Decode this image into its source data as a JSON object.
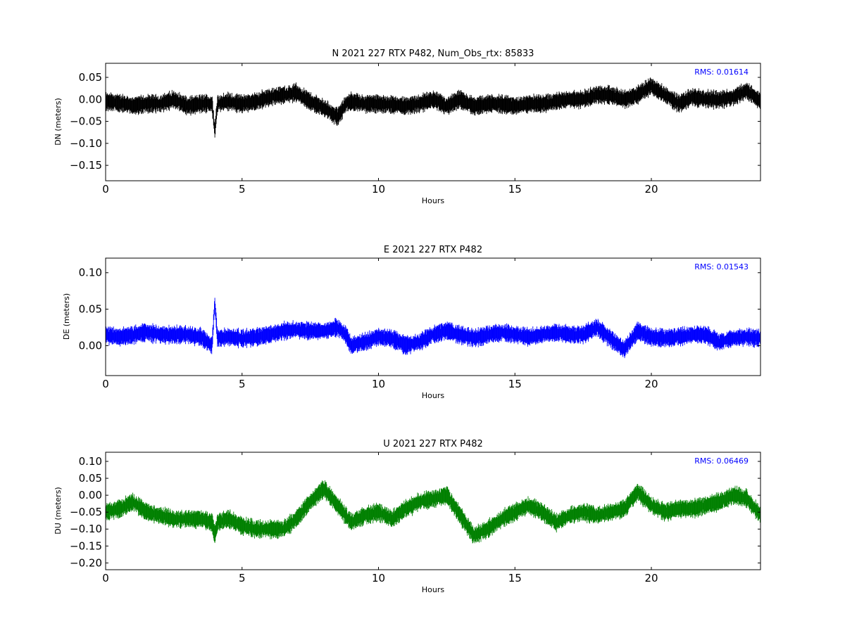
{
  "chart_data": [
    {
      "type": "scatter",
      "title": "N 2021 227 RTX  P482, Num_Obs_rtx: 85833",
      "xlabel": "Hours",
      "ylabel": "DN (meters)",
      "xlim": [
        0,
        24
      ],
      "ylim": [
        -0.185,
        0.082
      ],
      "xticks": [
        "0",
        "5",
        "10",
        "15",
        "20"
      ],
      "xtick_values": [
        0,
        5,
        10,
        15,
        20
      ],
      "yticks": [
        "0.05",
        "0.00",
        "−0.05",
        "−0.10",
        "−0.15"
      ],
      "ytick_values": [
        0.05,
        0.0,
        -0.05,
        -0.1,
        -0.15
      ],
      "color": "#000000",
      "annotation": "RMS:  0.01614",
      "annotation_color": "#0000ff",
      "grid": false,
      "series": [
        {
          "x": [
            0,
            0.5,
            1,
            1.5,
            2,
            2.5,
            3,
            3.5,
            3.9,
            4.0,
            4.1,
            4.5,
            5,
            5.5,
            6,
            6.5,
            7,
            7.5,
            8,
            8.5,
            8.8,
            9,
            9.5,
            10,
            10.5,
            11,
            11.5,
            12,
            12.5,
            13,
            13.5,
            14,
            14.5,
            15,
            15.5,
            16,
            16.5,
            17,
            17.5,
            18,
            18.5,
            19,
            19.5,
            20,
            20.5,
            21,
            21.5,
            22,
            22.5,
            23,
            23.5,
            24
          ],
          "y": [
            -0.005,
            -0.008,
            -0.015,
            -0.01,
            -0.01,
            0.0,
            -0.015,
            -0.01,
            -0.01,
            -0.07,
            -0.01,
            -0.005,
            -0.01,
            -0.005,
            0.005,
            0.01,
            0.015,
            -0.005,
            -0.02,
            -0.04,
            -0.01,
            -0.005,
            -0.01,
            -0.01,
            -0.012,
            -0.015,
            -0.01,
            0.0,
            -0.015,
            0.0,
            -0.015,
            -0.01,
            -0.01,
            -0.015,
            -0.01,
            -0.01,
            -0.005,
            0.0,
            0.0,
            0.01,
            0.01,
            0.0,
            0.01,
            0.03,
            0.01,
            -0.01,
            0.005,
            0.0,
            0.0,
            0.005,
            0.02,
            -0.005
          ]
        }
      ]
    },
    {
      "type": "scatter",
      "title": "E 2021 227 RTX  P482",
      "xlabel": "Hours",
      "ylabel": "DE (meters)",
      "xlim": [
        0,
        24
      ],
      "ylim": [
        -0.041,
        0.12
      ],
      "xticks": [
        "0",
        "5",
        "10",
        "15",
        "20"
      ],
      "xtick_values": [
        0,
        5,
        10,
        15,
        20
      ],
      "yticks": [
        "0.10",
        "0.05",
        "0.00"
      ],
      "ytick_values": [
        0.1,
        0.05,
        0.0
      ],
      "color": "#0000ff",
      "annotation": "RMS:  0.01543",
      "annotation_color": "#0000ff",
      "grid": false,
      "series": [
        {
          "x": [
            0,
            0.5,
            1,
            1.5,
            2,
            2.5,
            3,
            3.5,
            3.9,
            4.0,
            4.1,
            4.5,
            5,
            5.5,
            6,
            6.5,
            7,
            7.5,
            8,
            8.5,
            8.8,
            9,
            9.5,
            10,
            10.5,
            11,
            11.5,
            12,
            12.5,
            13,
            13.5,
            14,
            14.5,
            15,
            15.5,
            16,
            16.5,
            17,
            17.5,
            18,
            18.5,
            19,
            19.5,
            20,
            20.5,
            21,
            21.5,
            22,
            22.5,
            23,
            23.5,
            24
          ],
          "y": [
            0.015,
            0.012,
            0.015,
            0.018,
            0.015,
            0.015,
            0.015,
            0.012,
            0.0,
            0.06,
            0.01,
            0.012,
            0.01,
            0.012,
            0.015,
            0.02,
            0.022,
            0.02,
            0.02,
            0.025,
            0.015,
            0.0,
            0.005,
            0.012,
            0.01,
            0.0,
            0.005,
            0.015,
            0.02,
            0.015,
            0.01,
            0.015,
            0.018,
            0.015,
            0.012,
            0.015,
            0.018,
            0.015,
            0.015,
            0.025,
            0.01,
            -0.005,
            0.02,
            0.012,
            0.01,
            0.012,
            0.015,
            0.015,
            0.005,
            0.01,
            0.012,
            0.01
          ]
        }
      ]
    },
    {
      "type": "scatter",
      "title": "U 2021 227 RTX  P482",
      "xlabel": "Hours",
      "ylabel": "DU (meters)",
      "xlim": [
        0,
        24
      ],
      "ylim": [
        -0.22,
        0.127
      ],
      "xticks": [
        "0",
        "5",
        "10",
        "15",
        "20"
      ],
      "xtick_values": [
        0,
        5,
        10,
        15,
        20
      ],
      "yticks": [
        "0.10",
        "0.05",
        "0.00",
        "−0.05",
        "−0.10",
        "−0.15",
        "−0.20"
      ],
      "ytick_values": [
        0.1,
        0.05,
        0.0,
        -0.05,
        -0.1,
        -0.15,
        -0.2
      ],
      "color": "#008000",
      "annotation": "RMS:  0.06469",
      "annotation_color": "#0000ff",
      "grid": false,
      "series": [
        {
          "x": [
            0,
            0.5,
            1,
            1.5,
            2,
            2.5,
            3,
            3.5,
            3.9,
            4.0,
            4.1,
            4.5,
            5,
            5.5,
            6,
            6.5,
            7,
            7.5,
            8,
            8.5,
            8.8,
            9,
            9.5,
            10,
            10.5,
            11,
            11.5,
            12,
            12.5,
            13,
            13.5,
            14,
            14.5,
            15,
            15.5,
            16,
            16.5,
            17,
            17.5,
            18,
            18.5,
            19,
            19.5,
            20,
            20.5,
            21,
            21.5,
            22,
            22.5,
            23,
            23.5,
            24
          ],
          "y": [
            -0.05,
            -0.04,
            -0.02,
            -0.05,
            -0.06,
            -0.07,
            -0.07,
            -0.07,
            -0.08,
            -0.12,
            -0.08,
            -0.07,
            -0.09,
            -0.1,
            -0.1,
            -0.1,
            -0.07,
            -0.02,
            0.02,
            -0.03,
            -0.06,
            -0.08,
            -0.06,
            -0.05,
            -0.07,
            -0.04,
            -0.02,
            -0.01,
            0.0,
            -0.06,
            -0.12,
            -0.1,
            -0.07,
            -0.05,
            -0.03,
            -0.05,
            -0.08,
            -0.06,
            -0.05,
            -0.06,
            -0.05,
            -0.04,
            0.01,
            -0.03,
            -0.05,
            -0.04,
            -0.04,
            -0.03,
            -0.02,
            0.0,
            -0.01,
            -0.06
          ]
        }
      ]
    }
  ]
}
